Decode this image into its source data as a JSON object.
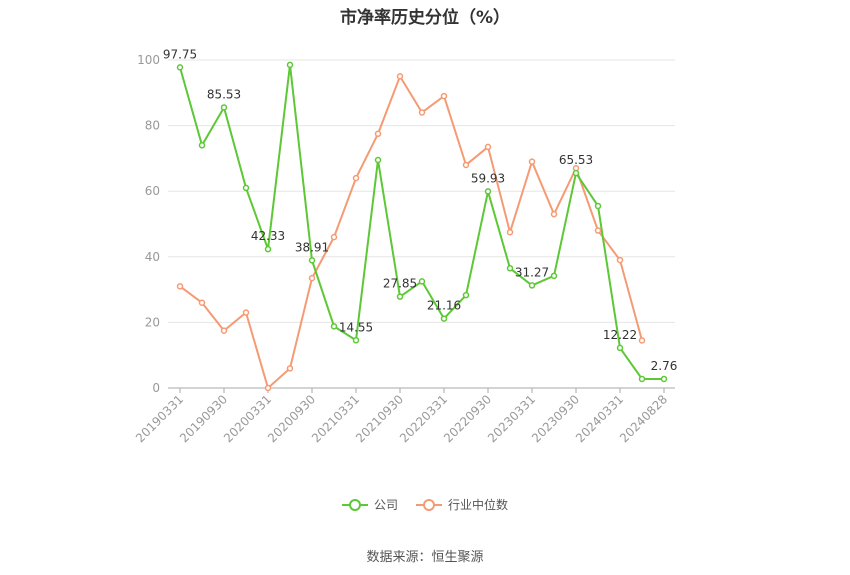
{
  "chart_data": {
    "type": "line",
    "title": "市净率历史分位（%）",
    "source": "数据来源：恒生聚源",
    "ylim": [
      0,
      100
    ],
    "y_ticks": [
      "0",
      "20",
      "40",
      "60",
      "80",
      "100"
    ],
    "x_tick_labels": [
      "20190331",
      "20190930",
      "20200331",
      "20200930",
      "20210331",
      "20210930",
      "20220331",
      "20220930",
      "20230331",
      "20230930",
      "20240331",
      "20240828"
    ],
    "x": [
      "20190331",
      "20190630",
      "20190930",
      "20191231",
      "20200331",
      "20200630",
      "20200930",
      "20201231",
      "20210331",
      "20210630",
      "20210930",
      "20211231",
      "20220331",
      "20220630",
      "20220930",
      "20221231",
      "20230331",
      "20230630",
      "20230930",
      "20231231",
      "20240331",
      "20240630",
      "20240828"
    ],
    "series": [
      {
        "name": "公司",
        "color": "#5dc836",
        "values": [
          97.75,
          74,
          85.53,
          61,
          42.33,
          98.5,
          38.91,
          18.8,
          14.55,
          69.5,
          27.85,
          32.5,
          21.16,
          28.3,
          59.93,
          36.5,
          31.27,
          34.2,
          65.53,
          55.5,
          12.22,
          2.76,
          2.76
        ],
        "labels": [
          "97.75",
          "",
          "85.53",
          "",
          "42.33",
          "",
          "38.91",
          "",
          "14.55",
          "",
          "27.85",
          "",
          "21.16",
          "",
          "59.93",
          "",
          "31.27",
          "",
          "65.53",
          "",
          "12.22",
          "",
          "2.76"
        ]
      },
      {
        "name": "行业中位数",
        "color": "#f59b74",
        "values": [
          31,
          26,
          17.5,
          23,
          0,
          6,
          33.5,
          46,
          64,
          77.5,
          95,
          84,
          89,
          68,
          73.5,
          47.5,
          69,
          53,
          67,
          48,
          39,
          14.5,
          null
        ]
      }
    ]
  }
}
